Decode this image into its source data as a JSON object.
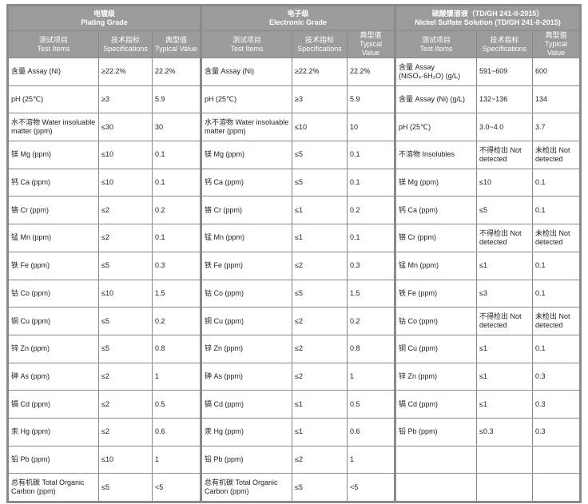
{
  "groups": [
    {
      "title_cn": "电镀级",
      "title_en": "Plating Grade"
    },
    {
      "title_cn": "电子级",
      "title_en": "Electronic Grade"
    },
    {
      "title_cn": "硫酸镍溶液（TD/GH 241-II-2015）",
      "title_en": "Nickel Sulfate Solution (TD/GH 241-II-2015)"
    }
  ],
  "columns": [
    {
      "cn": "测试项目",
      "en": "Test Items"
    },
    {
      "cn": "技术指标",
      "en": "Specifications"
    },
    {
      "cn": "典型值",
      "en": "Typical Value"
    }
  ],
  "plating": [
    [
      "含量 Assay (Ni)",
      "≥22.2%",
      "22.2%"
    ],
    [
      "pH (25℃)",
      "≥3",
      "5.9"
    ],
    [
      "水不溶物 Water insoluable matter (ppm)",
      "≤30",
      "30"
    ],
    [
      "镁 Mg (ppm)",
      "≤10",
      "0.1"
    ],
    [
      "钙 Ca (ppm)",
      "≤10",
      "0.1"
    ],
    [
      "铬 Cr (ppm)",
      "≤2",
      "0.2"
    ],
    [
      "锰 Mn (ppm)",
      "≤2",
      "0.1"
    ],
    [
      "铁 Fe (ppm)",
      "≤5",
      "0.3"
    ],
    [
      "钴 Co (ppm)",
      "≤10",
      "1.5"
    ],
    [
      "铜 Cu (ppm)",
      "≤5",
      "0.2"
    ],
    [
      "锌 Zn (ppm)",
      "≤5",
      "0.8"
    ],
    [
      "砷 As (ppm)",
      "≤2",
      "1"
    ],
    [
      "镉 Cd (ppm)",
      "≤2",
      "0.5"
    ],
    [
      "汞 Hg (ppm)",
      "≤2",
      "0.6"
    ],
    [
      "铅 Pb (ppm)",
      "≤10",
      "1"
    ],
    [
      "总有机碳 Total Organic Carbon (ppm)",
      "≤5",
      "<5"
    ]
  ],
  "electronic": [
    [
      "含量 Assay (Ni)",
      "≥22.2%",
      "22.2%"
    ],
    [
      "pH (25℃)",
      "≥3",
      "5.9"
    ],
    [
      "水不溶物 Water insoluable matter (ppm)",
      "≤10",
      "10"
    ],
    [
      "镁 Mg (ppm)",
      "≤5",
      "0.1"
    ],
    [
      "钙 Ca (ppm)",
      "≤5",
      "0.1"
    ],
    [
      "铬 Cr (ppm)",
      "≤1",
      "0.2"
    ],
    [
      "锰 Mn (ppm)",
      "≤1",
      "0.1"
    ],
    [
      "铁 Fe (ppm)",
      "≤2",
      "0.3"
    ],
    [
      "钴 Co (ppm)",
      "≤5",
      "1.5"
    ],
    [
      "铜 Cu (ppm)",
      "≤2",
      "0.2"
    ],
    [
      "锌 Zn (ppm)",
      "≤2",
      "0.8"
    ],
    [
      "砷 As (ppm)",
      "≤2",
      "1"
    ],
    [
      "镉 Cd (ppm)",
      "≤1",
      "0.5"
    ],
    [
      "汞 Hg (ppm)",
      "≤1",
      "0.6"
    ],
    [
      "铅 Pb (ppm)",
      "≤2",
      "1"
    ],
    [
      "总有机碳 Total Organic Carbon (ppm)",
      "≤5",
      "<5"
    ]
  ],
  "solution": [
    [
      "含量 Assay (NiSO₄·6H₂O) (g/L)",
      "591~609",
      "600"
    ],
    [
      "含量 Assay (Ni) (g/L)",
      "132~136",
      "134"
    ],
    [
      "pH (25℃)",
      "3.0~4.0",
      "3.7"
    ],
    [
      "不溶物 Insolubles",
      "不得检出 Not detected",
      "未检出 Not detected"
    ],
    [
      "镁 Mg (ppm)",
      "≤10",
      "0.1"
    ],
    [
      "钙 Ca (ppm)",
      "≤5",
      "0.1"
    ],
    [
      "铬 Cr (ppm)",
      "不得检出 Not detected",
      "未检出 Not detected"
    ],
    [
      "锰 Mn (ppm)",
      "≤1",
      "0.1"
    ],
    [
      "铁 Fe (ppm)",
      "≤3",
      "0.1"
    ],
    [
      "钴 Co (ppm)",
      "不得检出 Not detected",
      "未检出 Not detected"
    ],
    [
      "铜 Cu (ppm)",
      "≤1",
      "0.1"
    ],
    [
      "锌 Zn (ppm)",
      "≤1",
      "0.3"
    ],
    [
      "镉 Cd (ppm)",
      "≤1",
      "0.3"
    ],
    [
      "铅 Pb (ppm)",
      "≤0.3",
      "0.3"
    ]
  ]
}
